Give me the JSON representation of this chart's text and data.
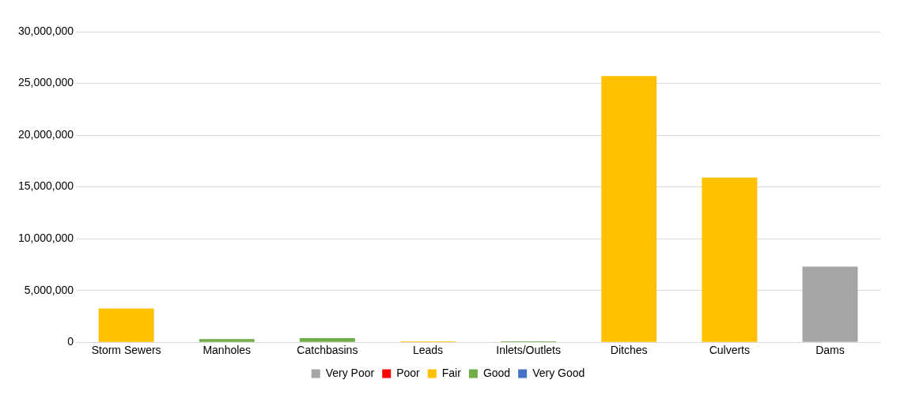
{
  "chart_data": {
    "type": "bar",
    "stacked": true,
    "categories": [
      "Storm Sewers",
      "Manholes",
      "Catchbasins",
      "Leads",
      "Inlets/Outlets",
      "Ditches",
      "Culverts",
      "Dams"
    ],
    "series": [
      {
        "name": "Very Poor",
        "color": "#a5a5a5",
        "values": [
          null,
          null,
          null,
          null,
          null,
          null,
          null,
          7300000
        ]
      },
      {
        "name": "Poor",
        "color": "#ff0000",
        "values": [
          null,
          null,
          null,
          null,
          null,
          null,
          null,
          null
        ]
      },
      {
        "name": "Fair",
        "color": "#ffc000",
        "values": [
          3250000,
          null,
          null,
          100000,
          null,
          25700000,
          15900000,
          null
        ]
      },
      {
        "name": "Good",
        "color": "#70ad47",
        "values": [
          null,
          300000,
          400000,
          null,
          100000,
          null,
          null,
          null
        ]
      },
      {
        "name": "Very Good",
        "color": "#4472c4",
        "values": [
          null,
          null,
          null,
          null,
          null,
          null,
          null,
          null
        ]
      }
    ],
    "ylim": [
      0,
      30000000
    ],
    "yticks": [
      {
        "value": 0,
        "label": "0"
      },
      {
        "value": 5000000,
        "label": "5,000,000"
      },
      {
        "value": 10000000,
        "label": "10,000,000"
      },
      {
        "value": 15000000,
        "label": "15,000,000"
      },
      {
        "value": 20000000,
        "label": "20,000,000"
      },
      {
        "value": 25000000,
        "label": "25,000,000"
      },
      {
        "value": 30000000,
        "label": "30,000,000"
      }
    ],
    "grid": "y",
    "legend": "bottom"
  }
}
